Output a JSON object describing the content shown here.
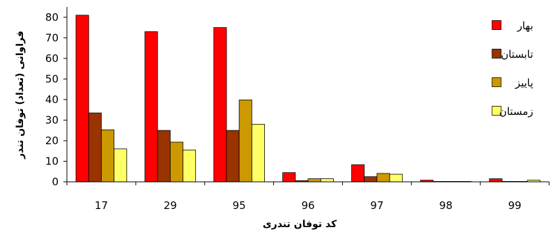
{
  "chart_data": {
    "type": "bar",
    "categories": [
      "17",
      "29",
      "95",
      "96",
      "97",
      "98",
      "99"
    ],
    "series": [
      {
        "name": "بهار",
        "color": "#ff0000",
        "values": [
          81,
          73,
          75,
          4.5,
          8.3,
          0.8,
          1.5
        ]
      },
      {
        "name": "تابستان",
        "color": "#993300",
        "values": [
          33.5,
          25,
          25,
          0.6,
          2.5,
          0.2,
          0.2
        ]
      },
      {
        "name": "پاییز",
        "color": "#cc9900",
        "values": [
          25.3,
          19.3,
          39.8,
          1.5,
          4.1,
          0.2,
          0.2
        ]
      },
      {
        "name": "زمستان",
        "color": "#ffff66",
        "values": [
          16,
          15.5,
          28,
          1.5,
          3.7,
          0.2,
          0.8
        ]
      }
    ],
    "xlabel": "کد توفان تندری",
    "ylabel": "فراوانی (تعداد) توفان تندر",
    "ylim": [
      0,
      85
    ],
    "yticks": [
      0,
      10,
      20,
      30,
      40,
      50,
      60,
      70,
      80
    ],
    "grid": false,
    "legend": "top-right"
  }
}
